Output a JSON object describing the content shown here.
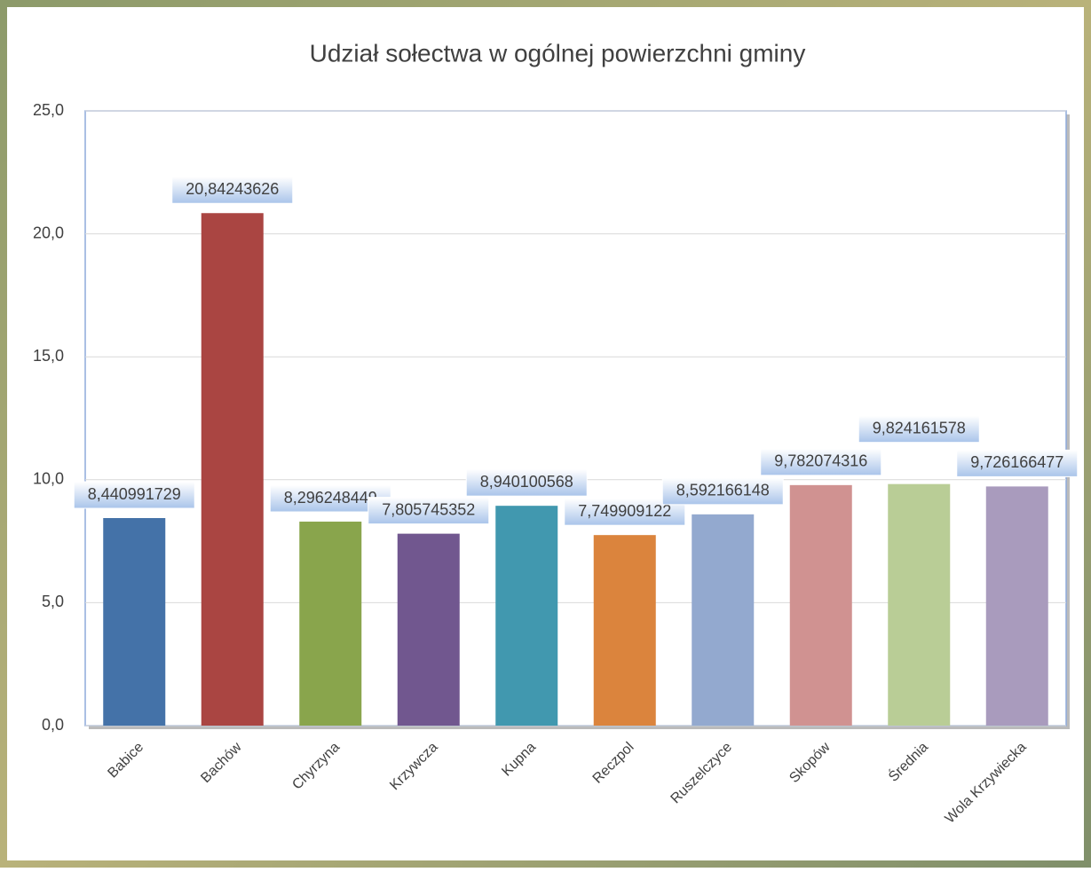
{
  "chart_data": {
    "type": "bar",
    "title": "Udział sołectwa w ogólnej powierzchni gminy",
    "categories": [
      "Babice",
      "Bachów",
      "Chyrzyna",
      "Krzywcza",
      "Kupna",
      "Reczpol",
      "Ruszelczyce",
      "Skopów",
      "Średnia",
      "Wola Krzywiecka"
    ],
    "values": [
      8.440991729,
      20.84243626,
      8.296248449,
      7.805745352,
      8.940100568,
      7.749909122,
      8.592166148,
      9.782074316,
      9.824161578,
      9.726166477
    ],
    "value_labels": [
      "8,440991729",
      "20,84243626",
      "8,296248449",
      "7,805745352",
      "8,940100568",
      "7,749909122",
      "8,592166148",
      "9,782074316",
      "9,824161578",
      "9,726166477"
    ],
    "colors": [
      "#4472a8",
      "#aa4542",
      "#89a54c",
      "#71578f",
      "#4198af",
      "#db843d",
      "#93a9cf",
      "#d09291",
      "#b9cd96",
      "#a99bbd"
    ],
    "ylim": [
      0,
      25
    ],
    "yticks": [
      {
        "value": 0,
        "label": "0,0"
      },
      {
        "value": 5,
        "label": "5,0"
      },
      {
        "value": 10,
        "label": "10,0"
      },
      {
        "value": 15,
        "label": "15,0"
      },
      {
        "value": 20,
        "label": "20,0"
      },
      {
        "value": 25,
        "label": "25,0"
      }
    ],
    "grid": true
  }
}
